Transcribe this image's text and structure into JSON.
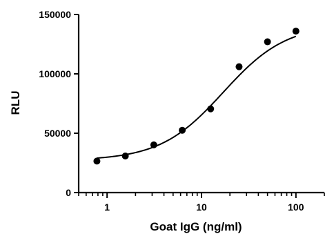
{
  "chart_data": {
    "type": "scatter",
    "title": "",
    "xlabel": "Goat IgG (ng/ml)",
    "ylabel": "RLU",
    "xscale": "log",
    "xlim": [
      0.5,
      200
    ],
    "ylim": [
      0,
      150000
    ],
    "x_ticks": [
      1,
      10,
      100
    ],
    "x_tick_labels": [
      "1",
      "10",
      "100"
    ],
    "y_ticks": [
      0,
      50000,
      100000,
      150000
    ],
    "y_tick_labels": [
      "0",
      "50000",
      "100000",
      "150000"
    ],
    "grid": false,
    "legend": "none",
    "series": [
      {
        "x": [
          0.78,
          1.56,
          3.125,
          6.25,
          12.5,
          25,
          50,
          100
        ],
        "y": [
          26500,
          30800,
          40200,
          52500,
          70500,
          106000,
          127000,
          136000
        ]
      }
    ],
    "fit": {
      "type": "4PL",
      "bottom": 27000,
      "top": 142000,
      "ec50": 17,
      "hill": 1.3
    },
    "colors": {
      "points": "#000000",
      "curve": "#000000",
      "axes": "#000000"
    }
  }
}
